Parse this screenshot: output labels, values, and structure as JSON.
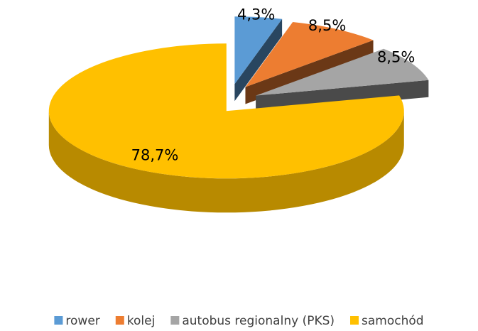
{
  "chart_data": {
    "type": "pie",
    "categories": [
      "rower",
      "kolej",
      "autobus regionalny (PKS)",
      "samochód"
    ],
    "values": [
      4.3,
      8.5,
      8.5,
      78.7
    ],
    "value_labels": [
      "4,3%",
      "8,5%",
      "8,5%",
      "78,7%"
    ],
    "colors": [
      "#5b9bd5",
      "#ed7d31",
      "#a5a5a5",
      "#ffc000"
    ],
    "legend": "bottom"
  }
}
